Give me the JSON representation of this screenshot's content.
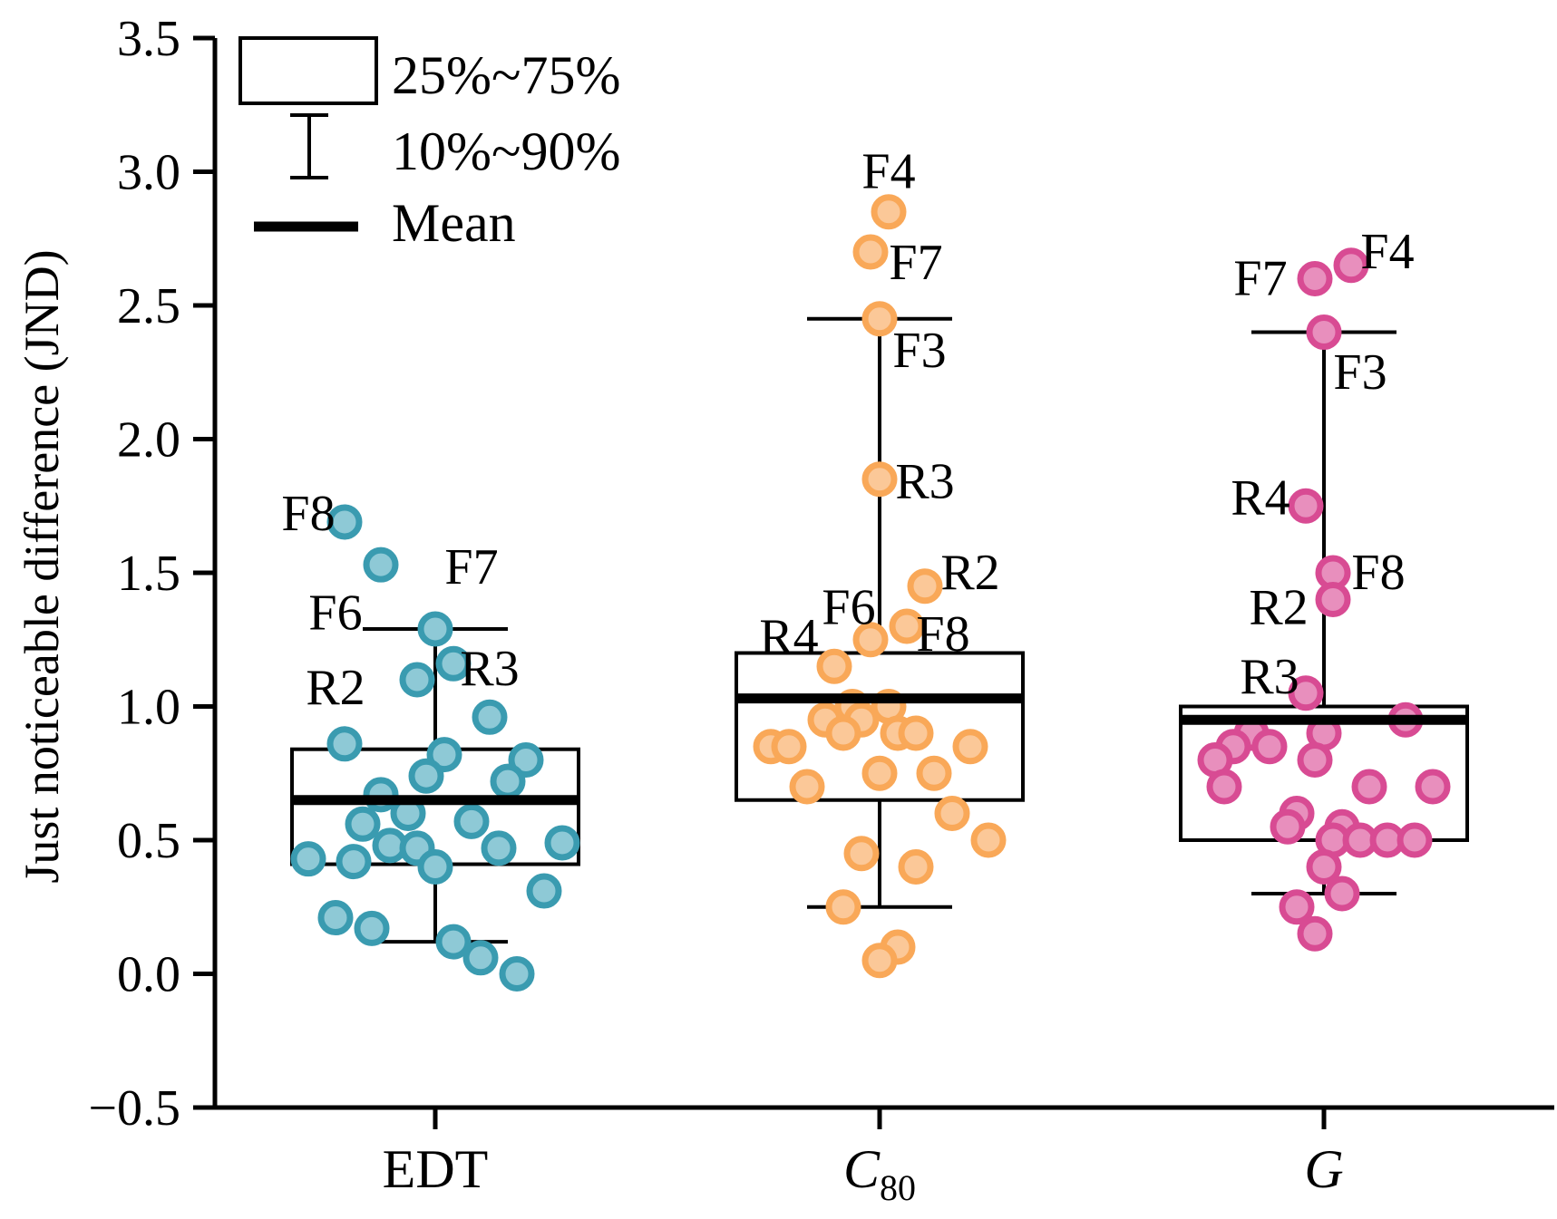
{
  "chart_data": {
    "type": "box-scatter",
    "ylabel": "Just noticeable difference (JND)",
    "ylim": [
      -0.5,
      3.5
    ],
    "yticks": [
      -0.5,
      0.0,
      0.5,
      1.0,
      1.5,
      2.0,
      2.5,
      3.0,
      3.5
    ],
    "ytick_labels": [
      "−0.5",
      "0.0",
      "0.5",
      "1.0",
      "1.5",
      "2.0",
      "2.5",
      "3.0",
      "3.5"
    ],
    "legend": {
      "position": "top-left",
      "box": "25%~75%",
      "whisker": "10%~90%",
      "mean": "Mean"
    },
    "groups": [
      {
        "name": "EDT",
        "label_main": "EDT",
        "label_sub": "",
        "italic": false,
        "color": "#3a9bb0",
        "fill": "#8ec9d6",
        "q1": 0.41,
        "q3": 0.84,
        "mean": 0.65,
        "p10": 0.12,
        "p90": 1.29,
        "points": [
          {
            "x": -0.5,
            "y": 1.69
          },
          {
            "x": -0.3,
            "y": 1.53
          },
          {
            "x": 0.0,
            "y": 1.29
          },
          {
            "x": 0.1,
            "y": 1.16
          },
          {
            "x": -0.1,
            "y": 1.1
          },
          {
            "x": 0.3,
            "y": 0.96
          },
          {
            "x": -0.5,
            "y": 0.86
          },
          {
            "x": 0.05,
            "y": 0.82
          },
          {
            "x": 0.5,
            "y": 0.8
          },
          {
            "x": -0.05,
            "y": 0.74
          },
          {
            "x": 0.4,
            "y": 0.72
          },
          {
            "x": -0.3,
            "y": 0.67
          },
          {
            "x": -0.15,
            "y": 0.6
          },
          {
            "x": -0.4,
            "y": 0.56
          },
          {
            "x": 0.2,
            "y": 0.57
          },
          {
            "x": 0.7,
            "y": 0.49
          },
          {
            "x": -0.25,
            "y": 0.48
          },
          {
            "x": -0.1,
            "y": 0.47
          },
          {
            "x": 0.35,
            "y": 0.47
          },
          {
            "x": -0.7,
            "y": 0.43
          },
          {
            "x": -0.45,
            "y": 0.42
          },
          {
            "x": 0.0,
            "y": 0.4
          },
          {
            "x": 0.6,
            "y": 0.31
          },
          {
            "x": -0.55,
            "y": 0.21
          },
          {
            "x": -0.35,
            "y": 0.17
          },
          {
            "x": 0.1,
            "y": 0.12
          },
          {
            "x": 0.25,
            "y": 0.06
          },
          {
            "x": 0.45,
            "y": 0.0
          }
        ],
        "labels": [
          {
            "text": "F8",
            "x": -0.7,
            "y": 1.72
          },
          {
            "text": "F7",
            "x": 0.2,
            "y": 1.52
          },
          {
            "text": "F6",
            "x": -0.55,
            "y": 1.35
          },
          {
            "text": "R2",
            "x": -0.55,
            "y": 1.07
          },
          {
            "text": "R3",
            "x": 0.3,
            "y": 1.14
          }
        ]
      },
      {
        "name": "C80",
        "label_main": "C",
        "label_sub": "80",
        "italic": true,
        "color": "#f9a858",
        "fill": "#fbc898",
        "q1": 0.65,
        "q3": 1.2,
        "mean": 1.03,
        "p10": 0.25,
        "p90": 2.45,
        "points": [
          {
            "x": 0.05,
            "y": 2.85
          },
          {
            "x": -0.05,
            "y": 2.7
          },
          {
            "x": 0.0,
            "y": 2.45
          },
          {
            "x": 0.0,
            "y": 1.85
          },
          {
            "x": 0.25,
            "y": 1.45
          },
          {
            "x": 0.15,
            "y": 1.3
          },
          {
            "x": -0.05,
            "y": 1.25
          },
          {
            "x": -0.25,
            "y": 1.15
          },
          {
            "x": -0.15,
            "y": 1.0
          },
          {
            "x": 0.05,
            "y": 1.0
          },
          {
            "x": -0.3,
            "y": 0.95
          },
          {
            "x": -0.1,
            "y": 0.95
          },
          {
            "x": -0.2,
            "y": 0.9
          },
          {
            "x": 0.1,
            "y": 0.9
          },
          {
            "x": 0.2,
            "y": 0.9
          },
          {
            "x": -0.6,
            "y": 0.85
          },
          {
            "x": -0.5,
            "y": 0.85
          },
          {
            "x": 0.5,
            "y": 0.85
          },
          {
            "x": 0.0,
            "y": 0.75
          },
          {
            "x": 0.3,
            "y": 0.75
          },
          {
            "x": -0.4,
            "y": 0.7
          },
          {
            "x": 0.4,
            "y": 0.6
          },
          {
            "x": 0.6,
            "y": 0.5
          },
          {
            "x": -0.1,
            "y": 0.45
          },
          {
            "x": 0.2,
            "y": 0.4
          },
          {
            "x": -0.2,
            "y": 0.25
          },
          {
            "x": 0.1,
            "y": 0.1
          },
          {
            "x": 0.0,
            "y": 0.05
          }
        ],
        "labels": [
          {
            "text": "F4",
            "x": 0.05,
            "y": 3.0
          },
          {
            "text": "F7",
            "x": 0.2,
            "y": 2.66
          },
          {
            "text": "F3",
            "x": 0.22,
            "y": 2.33
          },
          {
            "text": "R3",
            "x": 0.25,
            "y": 1.84
          },
          {
            "text": "R2",
            "x": 0.5,
            "y": 1.5
          },
          {
            "text": "F6",
            "x": -0.17,
            "y": 1.37
          },
          {
            "text": "F8",
            "x": 0.35,
            "y": 1.27
          },
          {
            "text": "R4",
            "x": -0.5,
            "y": 1.26
          }
        ]
      },
      {
        "name": "G",
        "label_main": "G",
        "label_sub": "",
        "italic": true,
        "color": "#d84b93",
        "fill": "#e88fbd",
        "q1": 0.5,
        "q3": 1.0,
        "mean": 0.95,
        "p10": 0.3,
        "p90": 2.4,
        "points": [
          {
            "x": 0.15,
            "y": 2.65
          },
          {
            "x": -0.05,
            "y": 2.6
          },
          {
            "x": 0.0,
            "y": 2.4
          },
          {
            "x": -0.1,
            "y": 1.75
          },
          {
            "x": 0.05,
            "y": 1.5
          },
          {
            "x": 0.05,
            "y": 1.4
          },
          {
            "x": -0.1,
            "y": 1.05
          },
          {
            "x": 0.45,
            "y": 0.95
          },
          {
            "x": -0.4,
            "y": 0.9
          },
          {
            "x": 0.0,
            "y": 0.9
          },
          {
            "x": -0.5,
            "y": 0.85
          },
          {
            "x": -0.3,
            "y": 0.85
          },
          {
            "x": -0.6,
            "y": 0.8
          },
          {
            "x": -0.05,
            "y": 0.8
          },
          {
            "x": -0.55,
            "y": 0.7
          },
          {
            "x": 0.6,
            "y": 0.7
          },
          {
            "x": 0.25,
            "y": 0.7
          },
          {
            "x": -0.15,
            "y": 0.6
          },
          {
            "x": -0.2,
            "y": 0.55
          },
          {
            "x": 0.1,
            "y": 0.55
          },
          {
            "x": 0.05,
            "y": 0.5
          },
          {
            "x": 0.2,
            "y": 0.5
          },
          {
            "x": 0.35,
            "y": 0.5
          },
          {
            "x": 0.5,
            "y": 0.5
          },
          {
            "x": 0.0,
            "y": 0.4
          },
          {
            "x": 0.1,
            "y": 0.3
          },
          {
            "x": -0.15,
            "y": 0.25
          },
          {
            "x": -0.05,
            "y": 0.15
          }
        ],
        "labels": [
          {
            "text": "F4",
            "x": 0.35,
            "y": 2.7
          },
          {
            "text": "F7",
            "x": -0.35,
            "y": 2.6
          },
          {
            "text": "F3",
            "x": 0.2,
            "y": 2.25
          },
          {
            "text": "R4",
            "x": -0.35,
            "y": 1.78
          },
          {
            "text": "F8",
            "x": 0.3,
            "y": 1.5
          },
          {
            "text": "R2",
            "x": -0.25,
            "y": 1.37
          },
          {
            "text": "R3",
            "x": -0.3,
            "y": 1.11
          }
        ]
      }
    ]
  }
}
